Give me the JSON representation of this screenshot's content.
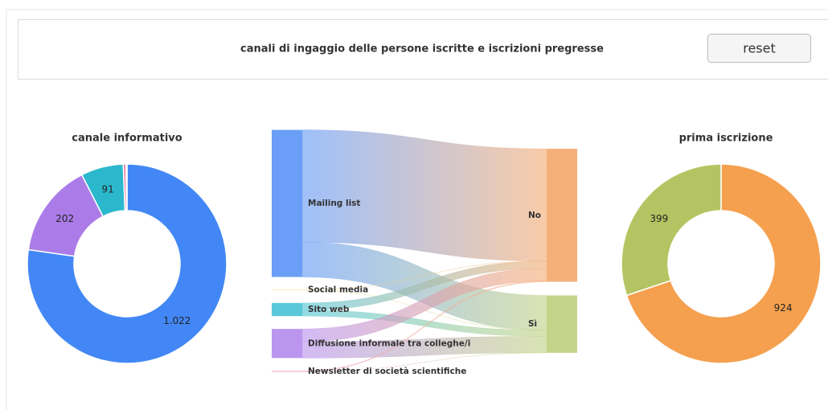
{
  "header": {
    "title": "canali di ingaggio delle persone iscritte e iscrizioni pregresse",
    "button": "reset"
  },
  "chart_data": [
    {
      "type": "pie",
      "donut": true,
      "title": "canale informativo",
      "values": [
        1022,
        202,
        91,
        6,
        2
      ],
      "value_labels": [
        "1.022",
        "202",
        "91",
        null,
        null
      ],
      "colors": [
        "#4287f5",
        "#ab7be8",
        "#2bb8cc",
        "#e87da8",
        "#f2e59a"
      ]
    },
    {
      "type": "sankey",
      "nodes": [
        {
          "name": "Mailing list",
          "color": "#6a9ef7"
        },
        {
          "name": "Social media",
          "color": "#f2e59a"
        },
        {
          "name": "Sito web",
          "color": "#5ac8d8"
        },
        {
          "name": "Diffusione informale tra colleghe/i",
          "color": "#bb95ee"
        },
        {
          "name": "Newsletter di società scientifiche",
          "color": "#f0a8c8"
        },
        {
          "name": "No",
          "color": "#f5b07a"
        },
        {
          "name": "Sì",
          "color": "#c5d48a"
        }
      ],
      "links": [
        {
          "source": 0,
          "target": 5,
          "value": 780
        },
        {
          "source": 0,
          "target": 6,
          "value": 242
        },
        {
          "source": 1,
          "target": 5,
          "value": 1
        },
        {
          "source": 1,
          "target": 6,
          "value": 1
        },
        {
          "source": 2,
          "target": 5,
          "value": 50
        },
        {
          "source": 2,
          "target": 6,
          "value": 41
        },
        {
          "source": 3,
          "target": 5,
          "value": 88
        },
        {
          "source": 3,
          "target": 6,
          "value": 114
        },
        {
          "source": 4,
          "target": 5,
          "value": 5
        },
        {
          "source": 4,
          "target": 6,
          "value": 1
        }
      ]
    },
    {
      "type": "pie",
      "donut": true,
      "title": "prima iscrizione",
      "values": [
        924,
        399
      ],
      "value_labels": [
        "924",
        "399"
      ],
      "colors": [
        "#f5a04f",
        "#b5c462"
      ]
    }
  ]
}
